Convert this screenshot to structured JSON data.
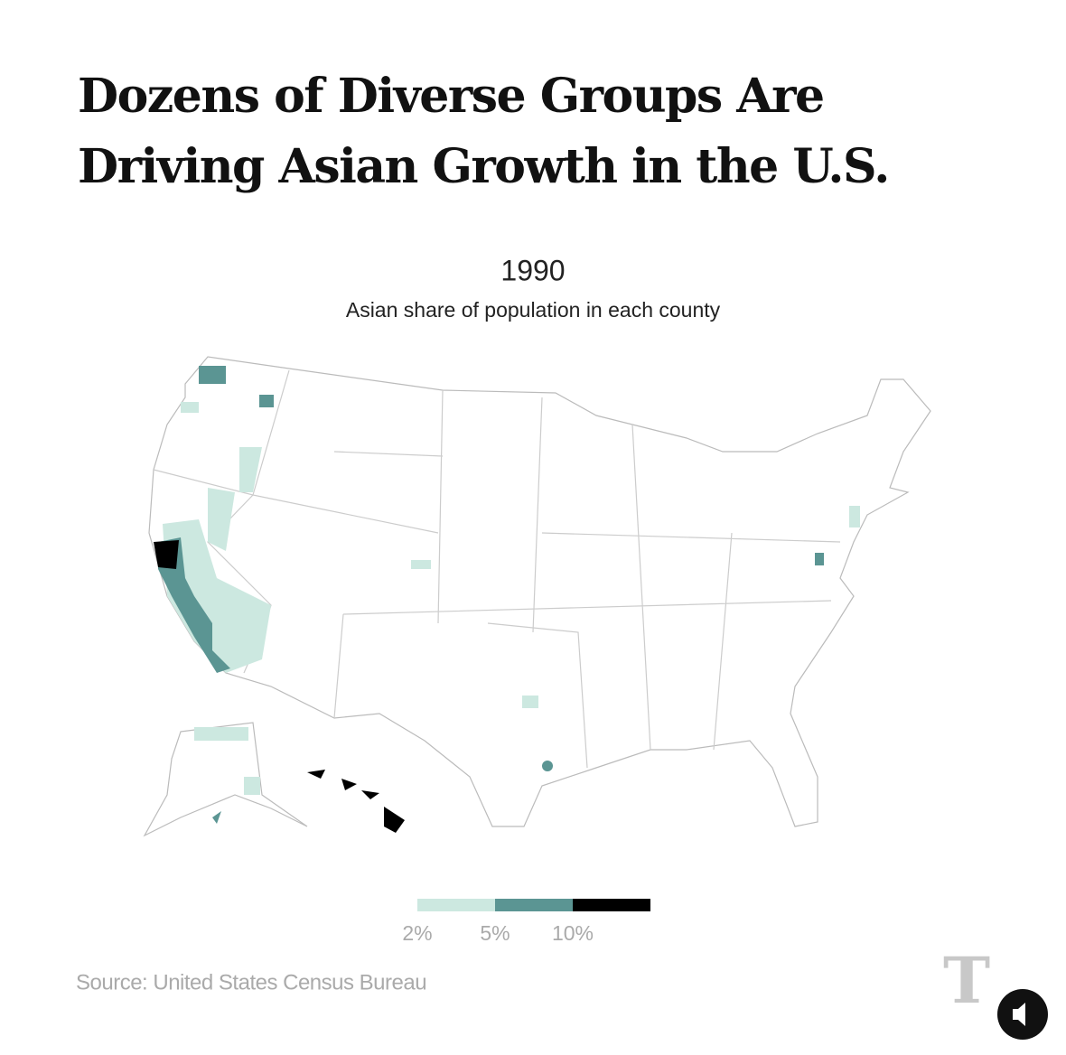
{
  "header": {
    "title_lines": [
      "Dozens of Diverse Groups Are",
      "Driving Asian Growth in the U.S."
    ]
  },
  "map": {
    "year": "1990",
    "subtitle": "Asian share of population in each county"
  },
  "legend": {
    "colors": [
      "#cce8e0",
      "#5b9593",
      "#000000"
    ],
    "ticks": [
      {
        "value": 2,
        "label": "2%"
      },
      {
        "value": 5,
        "label": "5%"
      },
      {
        "value": 10,
        "label": "10%"
      }
    ]
  },
  "source": "Source: United States Census Bureau"
}
